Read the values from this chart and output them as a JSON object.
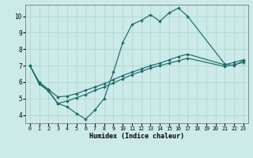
{
  "xlabel": "Humidex (Indice chaleur)",
  "bg_color": "#cceae8",
  "grid_color": "#aad4d0",
  "line_color": "#1a6b6b",
  "xlim": [
    -0.5,
    23.5
  ],
  "ylim": [
    3.5,
    10.7
  ],
  "yticks": [
    4,
    5,
    6,
    7,
    8,
    9,
    10
  ],
  "xticks": [
    0,
    1,
    2,
    3,
    4,
    5,
    6,
    7,
    8,
    9,
    10,
    11,
    12,
    13,
    14,
    15,
    16,
    17,
    18,
    19,
    20,
    21,
    22,
    23
  ],
  "series1_x": [
    0,
    1,
    2,
    3,
    4,
    5,
    6,
    7,
    8,
    9,
    10,
    11,
    12,
    13,
    14,
    15,
    16,
    17,
    21,
    22,
    23
  ],
  "series1_y": [
    7.0,
    5.9,
    5.5,
    4.7,
    4.5,
    4.1,
    3.75,
    4.3,
    5.0,
    6.6,
    8.4,
    9.5,
    9.75,
    10.1,
    9.7,
    10.2,
    10.5,
    10.0,
    7.1,
    7.0,
    7.3
  ],
  "series2_x": [
    0,
    1,
    2,
    3,
    4,
    5,
    6,
    7,
    8,
    9,
    10,
    11,
    12,
    13,
    14,
    15,
    16,
    17,
    21,
    22,
    23
  ],
  "series2_y": [
    7.0,
    6.0,
    5.55,
    5.1,
    5.15,
    5.3,
    5.5,
    5.7,
    5.9,
    6.15,
    6.4,
    6.6,
    6.8,
    7.0,
    7.15,
    7.35,
    7.55,
    7.7,
    7.05,
    7.2,
    7.35
  ],
  "series3_x": [
    0,
    1,
    2,
    3,
    4,
    5,
    6,
    7,
    8,
    9,
    10,
    11,
    12,
    13,
    14,
    15,
    16,
    17,
    21,
    22,
    23
  ],
  "series3_y": [
    7.0,
    5.9,
    5.45,
    4.7,
    4.85,
    5.05,
    5.25,
    5.5,
    5.7,
    5.95,
    6.2,
    6.45,
    6.65,
    6.85,
    7.0,
    7.15,
    7.3,
    7.45,
    6.95,
    7.05,
    7.2
  ]
}
